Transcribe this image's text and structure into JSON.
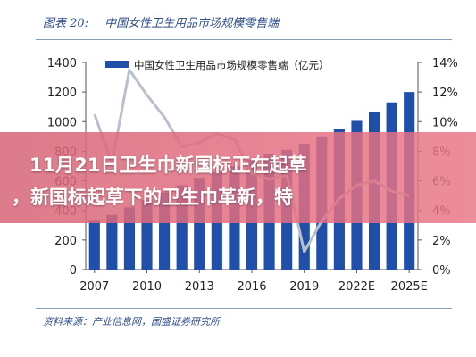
{
  "figure": {
    "tag": "图表 20:",
    "title": "中国女性卫生用品市场规模零售端",
    "source": "资料来源：产业信息网，国盛证券研究所"
  },
  "banner": {
    "line1": "11月21日卫生巾新国标正在起草",
    "line2": "，新国标起草下的卫生巾革新，特"
  },
  "colors": {
    "bar": "#1f4fa8",
    "line": "#b9c0cc",
    "text": "#2f4f8c",
    "banner": "#e0687e"
  },
  "chart_data": {
    "type": "bar",
    "legend_position": "top",
    "x": [
      "2007",
      "2008",
      "2009",
      "2010",
      "2011",
      "2012",
      "2013",
      "2014",
      "2015",
      "2016",
      "2017",
      "2018",
      "2019",
      "2020",
      "2021",
      "2022E",
      "2023E",
      "2024E",
      "2025E"
    ],
    "x_tick_labels": [
      "2007",
      "2010",
      "2013",
      "2016",
      "2019",
      "2022E",
      "2025E"
    ],
    "series": [
      {
        "name": "中国女性卫生用品市场规模零售端（亿元）",
        "type": "bar",
        "axis": "left",
        "values": [
          330,
          370,
          420,
          470,
          520,
          570,
          620,
          660,
          700,
          740,
          780,
          810,
          850,
          900,
          950,
          1005,
          1065,
          1130,
          1200
        ]
      },
      {
        "name": "",
        "type": "line",
        "axis": "right",
        "values": [
          10.5,
          7.2,
          13.5,
          11.8,
          10.3,
          8.3,
          8.6,
          9.2,
          8.8,
          6.5,
          6.1,
          6.4,
          1.2,
          3.3,
          4.8,
          5.7,
          6.0,
          5.3,
          5.0
        ]
      }
    ],
    "y_left": {
      "range": [
        0,
        1400
      ],
      "ticks": [
        0,
        200,
        400,
        600,
        800,
        1000,
        1200,
        1400
      ]
    },
    "y_right": {
      "range": [
        0,
        14
      ],
      "ticks": [
        "0%",
        "2%",
        "4%",
        "6%",
        "8%",
        "10%",
        "12%",
        "14%"
      ]
    }
  }
}
